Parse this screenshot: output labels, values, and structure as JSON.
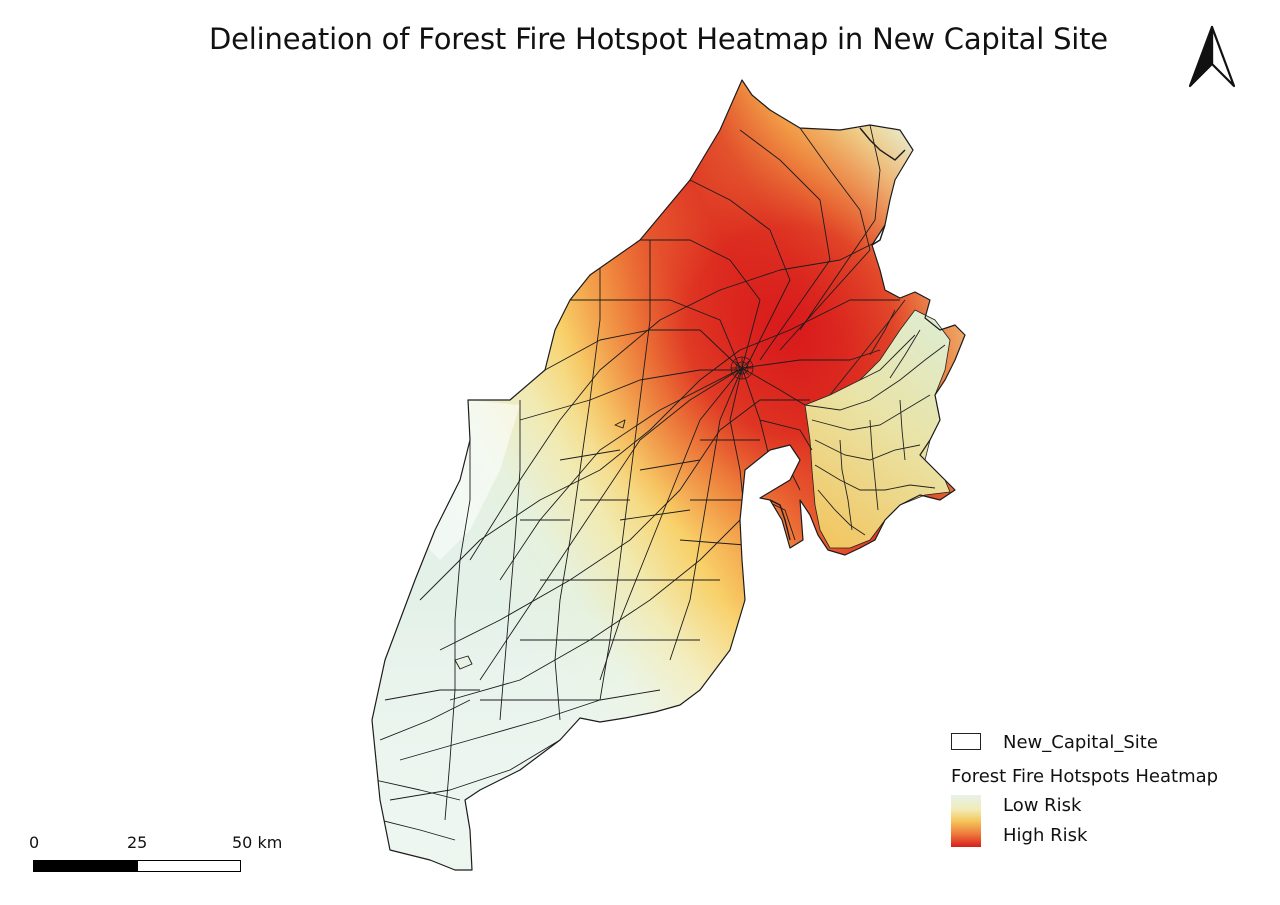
{
  "title": "Delineation of Forest Fire Hotspot Heatmap in New Capital Site",
  "north_arrow": {
    "icon": "north-arrow-icon"
  },
  "legend": {
    "boundary_label": "New_Capital_Site",
    "heatmap_title": "Forest Fire Hotspots Heatmap",
    "low_label": "Low Risk",
    "high_label": "High Risk",
    "colors": {
      "low": "#e6f2ea",
      "mid": "#f5c65a",
      "high": "#d81d1c"
    }
  },
  "scale_bar": {
    "labels": [
      "0",
      "25",
      "50 km"
    ]
  }
}
